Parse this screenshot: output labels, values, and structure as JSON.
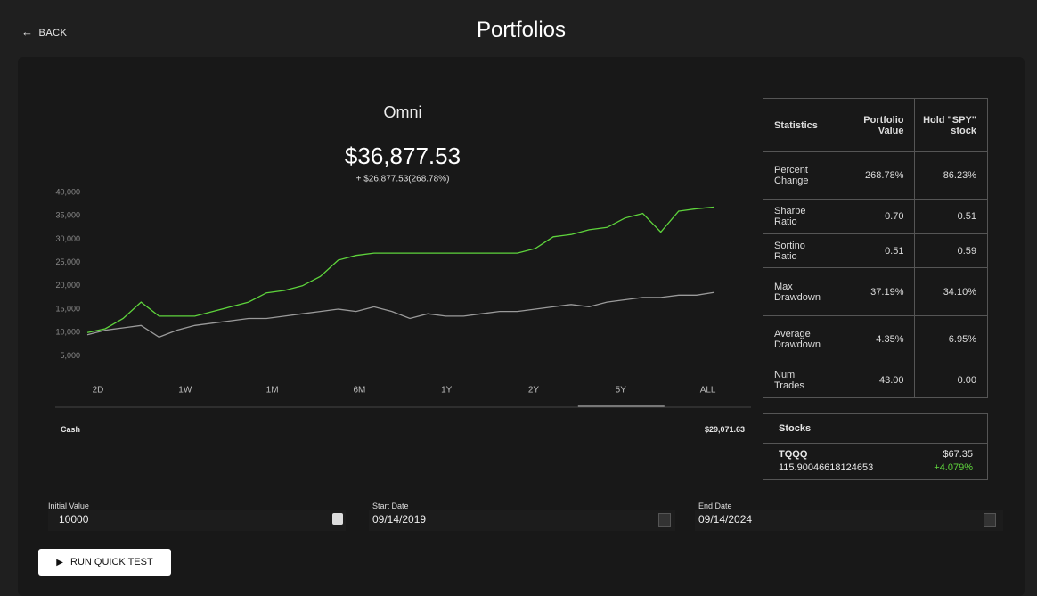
{
  "header": {
    "back": "BACK",
    "title": "Portfolios"
  },
  "chart_data": {
    "type": "line",
    "title": "Omni",
    "value": "$36,877.53",
    "change": "+ $26,877.53(268.78%)",
    "series": [
      {
        "color": "#5ed43c",
        "values": [
          10000,
          10800,
          13000,
          16500,
          13500,
          13500,
          13500,
          14500,
          15500,
          16500,
          18500,
          19000,
          20000,
          22000,
          25500,
          26500,
          27000,
          27000,
          27000,
          27000,
          27000,
          27000,
          27000,
          27000,
          27000,
          28000,
          30500,
          31000,
          32000,
          32500,
          34500,
          35500,
          31500,
          36000,
          36500,
          36877.53
        ]
      },
      {
        "color": "#9a9a9a",
        "values": [
          9500,
          10500,
          11000,
          11500,
          9000,
          10500,
          11500,
          12000,
          12500,
          13000,
          13000,
          13500,
          14000,
          14500,
          15000,
          14500,
          15500,
          14500,
          13000,
          14000,
          13500,
          13500,
          14000,
          14500,
          14500,
          15000,
          15500,
          16000,
          15500,
          16500,
          17000,
          17500,
          17500,
          18000,
          18000,
          18600
        ]
      }
    ],
    "ylim": [
      0,
      40000
    ],
    "yticks": [
      {
        "value": 5000,
        "label": "5,000"
      },
      {
        "value": 10000,
        "label": "10,000"
      },
      {
        "value": 15000,
        "label": "15,000"
      },
      {
        "value": 20000,
        "label": "20,000"
      },
      {
        "value": 25000,
        "label": "25,000"
      },
      {
        "value": 30000,
        "label": "30,000"
      },
      {
        "value": 35000,
        "label": "35,000"
      },
      {
        "value": 40000,
        "label": "40,000"
      }
    ]
  },
  "ranges": {
    "buttons": [
      "2D",
      "1W",
      "1M",
      "6M",
      "1Y",
      "2Y",
      "5Y",
      "ALL"
    ],
    "active": 6
  },
  "cash": {
    "label": "Cash",
    "value": "$29,071.63"
  },
  "statistics": {
    "header": [
      "Statistics",
      "Portfolio Value",
      "Hold \"SPY\" stock"
    ],
    "rows": [
      [
        "Percent Change",
        "268.78%",
        "86.23%"
      ],
      [
        "Sharpe Ratio",
        "0.70",
        "0.51"
      ],
      [
        "Sortino Ratio",
        "0.51",
        "0.59"
      ],
      [
        "Max Drawdown",
        "37.19%",
        "34.10%"
      ],
      [
        "Average Drawdown",
        "4.35%",
        "6.95%"
      ],
      [
        "Num Trades",
        "43.00",
        "0.00"
      ]
    ]
  },
  "stocks": {
    "title": "Stocks",
    "rows": [
      {
        "symbol": "TQQQ",
        "shares": "115.90046618124653",
        "price": "$67.35",
        "change": "+4.079%"
      }
    ]
  },
  "inputs": [
    {
      "label": "Initial Value",
      "value": "10000"
    },
    {
      "label": "Start Date",
      "value": "09/14/2019"
    },
    {
      "label": "End Date",
      "value": "09/14/2024"
    }
  ],
  "button": "RUN QUICK TEST"
}
